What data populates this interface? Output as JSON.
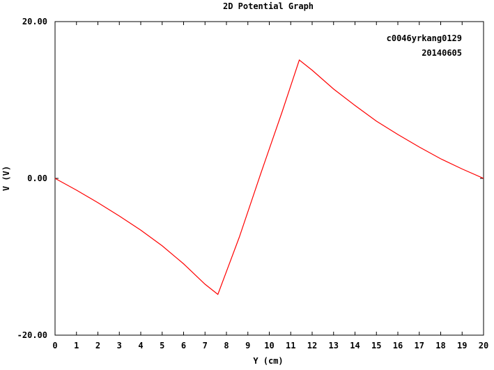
{
  "chart_data": {
    "type": "line",
    "title": "2D Potential Graph",
    "xlabel": "Y (cm)",
    "ylabel": "V (V)",
    "xlim": [
      0,
      20
    ],
    "ylim": [
      -20,
      20
    ],
    "x_ticks": [
      "0",
      "1",
      "2",
      "3",
      "4",
      "5",
      "6",
      "7",
      "8",
      "9",
      "10",
      "11",
      "12",
      "13",
      "14",
      "15",
      "16",
      "17",
      "18",
      "19",
      "20"
    ],
    "y_ticks": [
      {
        "value": 20,
        "label": "20.00"
      },
      {
        "value": 0,
        "label": "0.00"
      },
      {
        "value": -20,
        "label": "-20.00"
      }
    ],
    "grid": false,
    "annotations": [
      "c0046yrkang0129",
      "20140605"
    ],
    "series": [
      {
        "color": "#ff0000",
        "points": [
          [
            0,
            0
          ],
          [
            1,
            -1.5
          ],
          [
            2,
            -3.1
          ],
          [
            3,
            -4.8
          ],
          [
            4,
            -6.6
          ],
          [
            5,
            -8.6
          ],
          [
            6,
            -10.9
          ],
          [
            7,
            -13.5
          ],
          [
            7.6,
            -14.8
          ],
          [
            8.6,
            -7.5
          ],
          [
            9.6,
            0.6
          ],
          [
            10.6,
            8.5
          ],
          [
            11.4,
            15.1
          ],
          [
            12,
            13.8
          ],
          [
            13,
            11.4
          ],
          [
            14,
            9.3
          ],
          [
            15,
            7.3
          ],
          [
            16,
            5.6
          ],
          [
            17,
            4.0
          ],
          [
            18,
            2.5
          ],
          [
            19,
            1.2
          ],
          [
            20,
            0
          ]
        ]
      }
    ]
  }
}
